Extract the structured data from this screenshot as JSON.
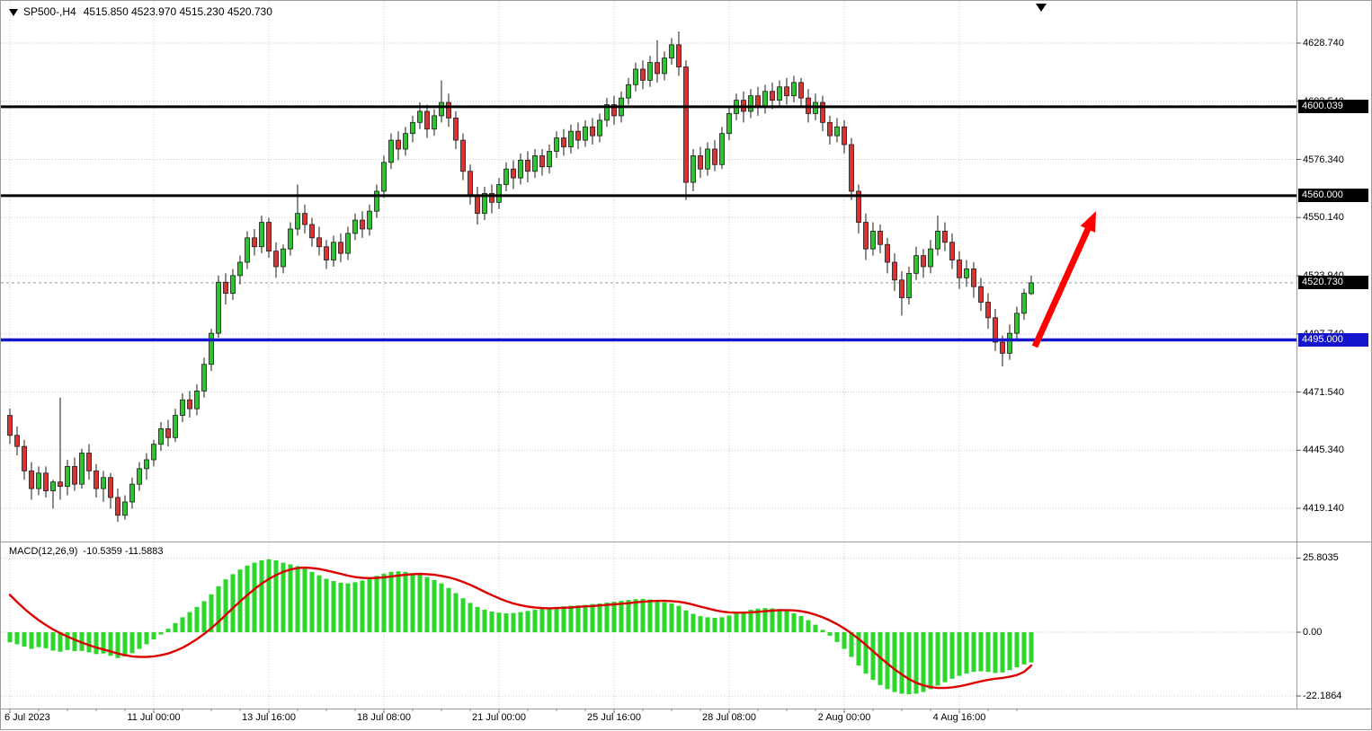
{
  "header": {
    "symbol_period": "SP500-,H4",
    "ohlc": "4515.850 4523.970 4515.230 4520.730"
  },
  "indicator": {
    "name": "MACD(12,26,9)",
    "values": "-10.5359 -11.5883"
  },
  "colors": {
    "background": "#ffffff",
    "border": "#9c9c9c",
    "grid": "#c9c9c9",
    "bull": "#2fc42f",
    "bear": "#d93434",
    "outline": "#1b1b1b",
    "histogram": "#2bd72b",
    "signal": "#dd0000",
    "bid_line": "#9a9a9a",
    "badge_text": "#ffffff",
    "level_black": "#000000",
    "level_blue": "#1414cc",
    "arrow": "#ff0000"
  },
  "chart_data": {
    "type": "candlestick",
    "title": "SP500-,H4",
    "timeframe": "H4",
    "price_axis": {
      "ylim": [
        4405,
        4648
      ],
      "ticks": [
        {
          "label": "4628.740",
          "price": 4628.74
        },
        {
          "label": "4602.540",
          "price": 4602.54
        },
        {
          "label": "4576.340",
          "price": 4576.34
        },
        {
          "label": "4550.140",
          "price": 4550.14
        },
        {
          "label": "4523.940",
          "price": 4523.94
        },
        {
          "label": "4497.740",
          "price": 4497.74
        },
        {
          "label": "4471.540",
          "price": 4471.54
        },
        {
          "label": "4445.340",
          "price": 4445.34
        },
        {
          "label": "4419.140",
          "price": 4419.14
        }
      ]
    },
    "macd_axis": {
      "ticks": [
        {
          "label": "25.8035",
          "value": 25.8035
        },
        {
          "label": "0.00",
          "value": 0
        },
        {
          "label": "-22.1864",
          "value": -22.1864
        }
      ]
    },
    "time_axis": [
      {
        "label": "6 Jul 2023",
        "index": 0
      },
      {
        "label": "11 Jul 00:00",
        "index": 20
      },
      {
        "label": "13 Jul 16:00",
        "index": 36
      },
      {
        "label": "18 Jul 08:00",
        "index": 52
      },
      {
        "label": "21 Jul 00:00",
        "index": 68
      },
      {
        "label": "25 Jul 16:00",
        "index": 84
      },
      {
        "label": "28 Jul 08:00",
        "index": 100
      },
      {
        "label": "2 Aug 00:00",
        "index": 116
      },
      {
        "label": "4 Aug 16:00",
        "index": 132
      }
    ],
    "candles": [
      [
        4461,
        4464,
        4448,
        4452
      ],
      [
        4452,
        4456,
        4443,
        4447
      ],
      [
        4447,
        4450,
        4432,
        4436
      ],
      [
        4436,
        4440,
        4423,
        4428
      ],
      [
        4428,
        4438,
        4425,
        4435
      ],
      [
        4435,
        4438,
        4424,
        4427
      ],
      [
        4427,
        4432,
        4419,
        4431
      ],
      [
        4431,
        4469,
        4423,
        4429
      ],
      [
        4429,
        4441,
        4425,
        4438
      ],
      [
        4438,
        4442,
        4427,
        4430
      ],
      [
        4430,
        4446,
        4428,
        4444
      ],
      [
        4444,
        4448,
        4432,
        4436
      ],
      [
        4436,
        4439,
        4424,
        4428
      ],
      [
        4428,
        4436,
        4422,
        4433
      ],
      [
        4433,
        4435,
        4419,
        4424
      ],
      [
        4424,
        4428,
        4413,
        4416
      ],
      [
        4416,
        4425,
        4414,
        4422
      ],
      [
        4422,
        4433,
        4419,
        4430
      ],
      [
        4430,
        4440,
        4427,
        4437
      ],
      [
        4437,
        4444,
        4432,
        4441
      ],
      [
        4441,
        4450,
        4438,
        4448
      ],
      [
        4448,
        4458,
        4445,
        4455
      ],
      [
        4455,
        4459,
        4447,
        4451
      ],
      [
        4451,
        4464,
        4449,
        4461
      ],
      [
        4461,
        4471,
        4458,
        4468
      ],
      [
        4468,
        4472,
        4460,
        4464
      ],
      [
        4464,
        4475,
        4461,
        4472
      ],
      [
        4472,
        4487,
        4469,
        4484
      ],
      [
        4484,
        4500,
        4481,
        4498
      ],
      [
        4498,
        4524,
        4496,
        4521
      ],
      [
        4521,
        4525,
        4511,
        4516
      ],
      [
        4516,
        4527,
        4513,
        4524
      ],
      [
        4524,
        4533,
        4520,
        4530
      ],
      [
        4530,
        4544,
        4527,
        4541
      ],
      [
        4541,
        4545,
        4533,
        4537
      ],
      [
        4537,
        4551,
        4534,
        4548
      ],
      [
        4548,
        4550,
        4532,
        4535
      ],
      [
        4535,
        4539,
        4523,
        4528
      ],
      [
        4528,
        4538,
        4525,
        4536
      ],
      [
        4536,
        4548,
        4533,
        4545
      ],
      [
        4545,
        4565,
        4542,
        4552
      ],
      [
        4552,
        4556,
        4543,
        4547
      ],
      [
        4547,
        4550,
        4537,
        4541
      ],
      [
        4541,
        4546,
        4533,
        4537
      ],
      [
        4537,
        4540,
        4527,
        4531
      ],
      [
        4531,
        4542,
        4528,
        4539
      ],
      [
        4539,
        4543,
        4530,
        4534
      ],
      [
        4534,
        4546,
        4531,
        4543
      ],
      [
        4543,
        4552,
        4540,
        4549
      ],
      [
        4549,
        4553,
        4541,
        4545
      ],
      [
        4545,
        4556,
        4542,
        4553
      ],
      [
        4553,
        4565,
        4550,
        4562
      ],
      [
        4562,
        4578,
        4559,
        4575
      ],
      [
        4575,
        4588,
        4572,
        4585
      ],
      [
        4585,
        4589,
        4576,
        4581
      ],
      [
        4581,
        4591,
        4578,
        4588
      ],
      [
        4588,
        4596,
        4584,
        4593
      ],
      [
        4593,
        4602,
        4590,
        4598
      ],
      [
        4598,
        4601,
        4586,
        4590
      ],
      [
        4590,
        4599,
        4587,
        4596
      ],
      [
        4596,
        4612,
        4593,
        4602
      ],
      [
        4602,
        4606,
        4591,
        4595
      ],
      [
        4595,
        4598,
        4581,
        4585
      ],
      [
        4585,
        4588,
        4567,
        4571
      ],
      [
        4571,
        4574,
        4556,
        4560
      ],
      [
        4560,
        4564,
        4547,
        4552
      ],
      [
        4552,
        4564,
        4549,
        4561
      ],
      [
        4561,
        4565,
        4552,
        4557
      ],
      [
        4557,
        4568,
        4554,
        4565
      ],
      [
        4565,
        4575,
        4562,
        4572
      ],
      [
        4572,
        4576,
        4563,
        4568
      ],
      [
        4568,
        4579,
        4565,
        4576
      ],
      [
        4576,
        4580,
        4566,
        4571
      ],
      [
        4571,
        4581,
        4568,
        4578
      ],
      [
        4578,
        4581,
        4569,
        4573
      ],
      [
        4573,
        4583,
        4570,
        4580
      ],
      [
        4580,
        4589,
        4577,
        4586
      ],
      [
        4586,
        4590,
        4578,
        4582
      ],
      [
        4582,
        4592,
        4579,
        4589
      ],
      [
        4589,
        4593,
        4581,
        4585
      ],
      [
        4585,
        4594,
        4582,
        4591
      ],
      [
        4591,
        4595,
        4583,
        4587
      ],
      [
        4587,
        4597,
        4584,
        4594
      ],
      [
        4594,
        4604,
        4591,
        4601
      ],
      [
        4601,
        4605,
        4592,
        4596
      ],
      [
        4596,
        4607,
        4593,
        4604
      ],
      [
        4604,
        4613,
        4601,
        4610
      ],
      [
        4610,
        4620,
        4607,
        4617
      ],
      [
        4617,
        4621,
        4608,
        4612
      ],
      [
        4612,
        4623,
        4609,
        4620
      ],
      [
        4620,
        4630,
        4611,
        4615
      ],
      [
        4615,
        4625,
        4612,
        4622
      ],
      [
        4622,
        4631,
        4619,
        4628
      ],
      [
        4628,
        4634,
        4614,
        4618
      ],
      [
        4618,
        4621,
        4558,
        4566
      ],
      [
        4566,
        4581,
        4562,
        4578
      ],
      [
        4578,
        4582,
        4568,
        4572
      ],
      [
        4572,
        4584,
        4569,
        4581
      ],
      [
        4581,
        4585,
        4571,
        4574
      ],
      [
        4574,
        4591,
        4572,
        4588
      ],
      [
        4588,
        4600,
        4585,
        4597
      ],
      [
        4597,
        4606,
        4594,
        4603
      ],
      [
        4603,
        4607,
        4593,
        4598
      ],
      [
        4598,
        4608,
        4595,
        4605
      ],
      [
        4605,
        4609,
        4596,
        4600
      ],
      [
        4600,
        4610,
        4597,
        4607
      ],
      [
        4607,
        4611,
        4599,
        4603
      ],
      [
        4603,
        4612,
        4600,
        4609
      ],
      [
        4609,
        4613,
        4601,
        4605
      ],
      [
        4605,
        4614,
        4602,
        4611
      ],
      [
        4611,
        4613,
        4600,
        4604
      ],
      [
        4604,
        4608,
        4593,
        4597
      ],
      [
        4597,
        4606,
        4594,
        4602
      ],
      [
        4602,
        4605,
        4589,
        4593
      ],
      [
        4593,
        4596,
        4583,
        4587
      ],
      [
        4587,
        4595,
        4584,
        4591
      ],
      [
        4591,
        4594,
        4579,
        4583
      ],
      [
        4583,
        4586,
        4558,
        4562
      ],
      [
        4562,
        4565,
        4543,
        4548
      ],
      [
        4548,
        4552,
        4531,
        4536
      ],
      [
        4536,
        4548,
        4533,
        4544
      ],
      [
        4544,
        4547,
        4534,
        4538
      ],
      [
        4538,
        4541,
        4525,
        4530
      ],
      [
        4530,
        4534,
        4517,
        4522
      ],
      [
        4522,
        4526,
        4506,
        4514
      ],
      [
        4514,
        4528,
        4511,
        4525
      ],
      [
        4525,
        4537,
        4522,
        4533
      ],
      [
        4533,
        4536,
        4523,
        4528
      ],
      [
        4528,
        4540,
        4525,
        4536
      ],
      [
        4536,
        4551,
        4533,
        4544
      ],
      [
        4544,
        4548,
        4535,
        4539
      ],
      [
        4539,
        4543,
        4527,
        4531
      ],
      [
        4531,
        4535,
        4518,
        4523
      ],
      [
        4523,
        4531,
        4519,
        4527
      ],
      [
        4527,
        4530,
        4514,
        4519
      ],
      [
        4519,
        4523,
        4508,
        4512
      ],
      [
        4512,
        4516,
        4500,
        4505
      ],
      [
        4505,
        4509,
        4490,
        4494
      ],
      [
        4494,
        4497,
        4483,
        4489
      ],
      [
        4489,
        4502,
        4486,
        4498
      ],
      [
        4498,
        4510,
        4495,
        4507
      ],
      [
        4507,
        4518,
        4504,
        4516
      ],
      [
        4515.85,
        4523.97,
        4515.23,
        4520.73
      ]
    ],
    "macd": {
      "params": "12,26,9",
      "current_main": -10.5359,
      "current_signal": -11.5883,
      "histogram": [
        -3.5,
        -4.2,
        -5.0,
        -5.8,
        -5.2,
        -5.6,
        -6.4,
        -6.8,
        -6.2,
        -6.6,
        -6.5,
        -7.0,
        -7.6,
        -7.4,
        -8.2,
        -9.0,
        -8.4,
        -7.3,
        -5.8,
        -4.2,
        -2.5,
        -0.8,
        1.2,
        3.2,
        5.2,
        7.0,
        8.8,
        10.8,
        13.2,
        16.0,
        18.4,
        20.2,
        21.8,
        23.2,
        24.2,
        25.0,
        25.4,
        25.0,
        24.2,
        23.6,
        23.0,
        22.2,
        21.0,
        19.8,
        18.6,
        17.8,
        17.2,
        17.0,
        17.4,
        18.0,
        18.8,
        19.6,
        20.4,
        21.0,
        21.2,
        21.0,
        20.6,
        20.0,
        19.2,
        18.2,
        17.0,
        15.4,
        13.6,
        11.8,
        10.2,
        8.8,
        7.8,
        7.2,
        6.8,
        6.6,
        6.7,
        7.0,
        7.4,
        7.8,
        8.2,
        8.5,
        8.8,
        9.0,
        9.2,
        9.3,
        9.5,
        9.8,
        10.0,
        10.3,
        10.6,
        10.9,
        11.2,
        11.5,
        11.6,
        11.4,
        11.0,
        10.4,
        10.0,
        9.2,
        7.6,
        6.4,
        5.6,
        5.2,
        5.0,
        5.2,
        5.8,
        6.6,
        7.2,
        7.8,
        8.2,
        8.4,
        8.3,
        8.0,
        7.4,
        6.6,
        5.6,
        4.2,
        2.6,
        0.8,
        -1.2,
        -3.4,
        -5.8,
        -8.6,
        -11.6,
        -14.4,
        -16.6,
        -18.4,
        -19.8,
        -20.8,
        -21.4,
        -21.6,
        -21.4,
        -20.8,
        -19.8,
        -18.6,
        -17.4,
        -16.2,
        -15.2,
        -14.4,
        -13.8,
        -13.6,
        -13.8,
        -14.2,
        -14.0,
        -13.2,
        -12.2,
        -11.2,
        -10.5
      ],
      "signal": [
        13.0,
        10.5,
        8.2,
        6.1,
        4.2,
        2.5,
        1.0,
        -0.3,
        -1.5,
        -2.6,
        -3.6,
        -4.5,
        -5.3,
        -6.0,
        -6.7,
        -7.4,
        -8.0,
        -8.4,
        -8.6,
        -8.6,
        -8.4,
        -8.0,
        -7.4,
        -6.5,
        -5.4,
        -4.0,
        -2.4,
        -0.6,
        1.4,
        3.6,
        6.0,
        8.4,
        10.7,
        12.9,
        15.0,
        16.9,
        18.5,
        19.9,
        21.0,
        21.8,
        22.3,
        22.5,
        22.3,
        22.0,
        21.5,
        20.9,
        20.3,
        19.7,
        19.2,
        18.9,
        18.8,
        18.9,
        19.1,
        19.4,
        19.7,
        20.0,
        20.2,
        20.3,
        20.2,
        20.0,
        19.6,
        19.1,
        18.4,
        17.5,
        16.5,
        15.3,
        14.1,
        12.9,
        11.8,
        10.8,
        10.0,
        9.4,
        8.9,
        8.6,
        8.4,
        8.3,
        8.4,
        8.5,
        8.6,
        8.8,
        9.0,
        9.1,
        9.3,
        9.5,
        9.7,
        9.9,
        10.1,
        10.4,
        10.6,
        10.8,
        10.9,
        10.9,
        10.8,
        10.6,
        10.2,
        9.6,
        8.9,
        8.3,
        7.7,
        7.2,
        6.9,
        6.8,
        6.8,
        6.9,
        7.1,
        7.3,
        7.5,
        7.7,
        7.7,
        7.6,
        7.3,
        6.8,
        6.1,
        5.2,
        4.1,
        2.8,
        1.3,
        -0.4,
        -2.3,
        -4.4,
        -6.6,
        -8.8,
        -10.9,
        -12.9,
        -14.7,
        -16.3,
        -17.6,
        -18.5,
        -19.1,
        -19.4,
        -19.4,
        -19.2,
        -18.8,
        -18.3,
        -17.7,
        -17.1,
        -16.6,
        -16.2,
        -15.9,
        -15.5,
        -14.9,
        -13.8,
        -11.6
      ]
    },
    "levels": [
      {
        "price": 4600.039,
        "label": "4600.039",
        "color": "#000000",
        "width": 3,
        "name": "resistance-line-4600"
      },
      {
        "price": 4560.0,
        "label": "4560.000",
        "color": "#000000",
        "width": 3,
        "name": "resistance-line-4560"
      },
      {
        "price": 4495.0,
        "label": "4495.000",
        "color": "#1414cc",
        "width": 3.5,
        "name": "support-line-4495"
      }
    ],
    "bid": {
      "price": 4520.73,
      "label": "4520.730"
    },
    "arrow": {
      "from": {
        "bar": 142.5,
        "price": 4492
      },
      "to": {
        "bar": 151,
        "price": 4553
      },
      "color": "#ff0000",
      "width": 7
    }
  }
}
